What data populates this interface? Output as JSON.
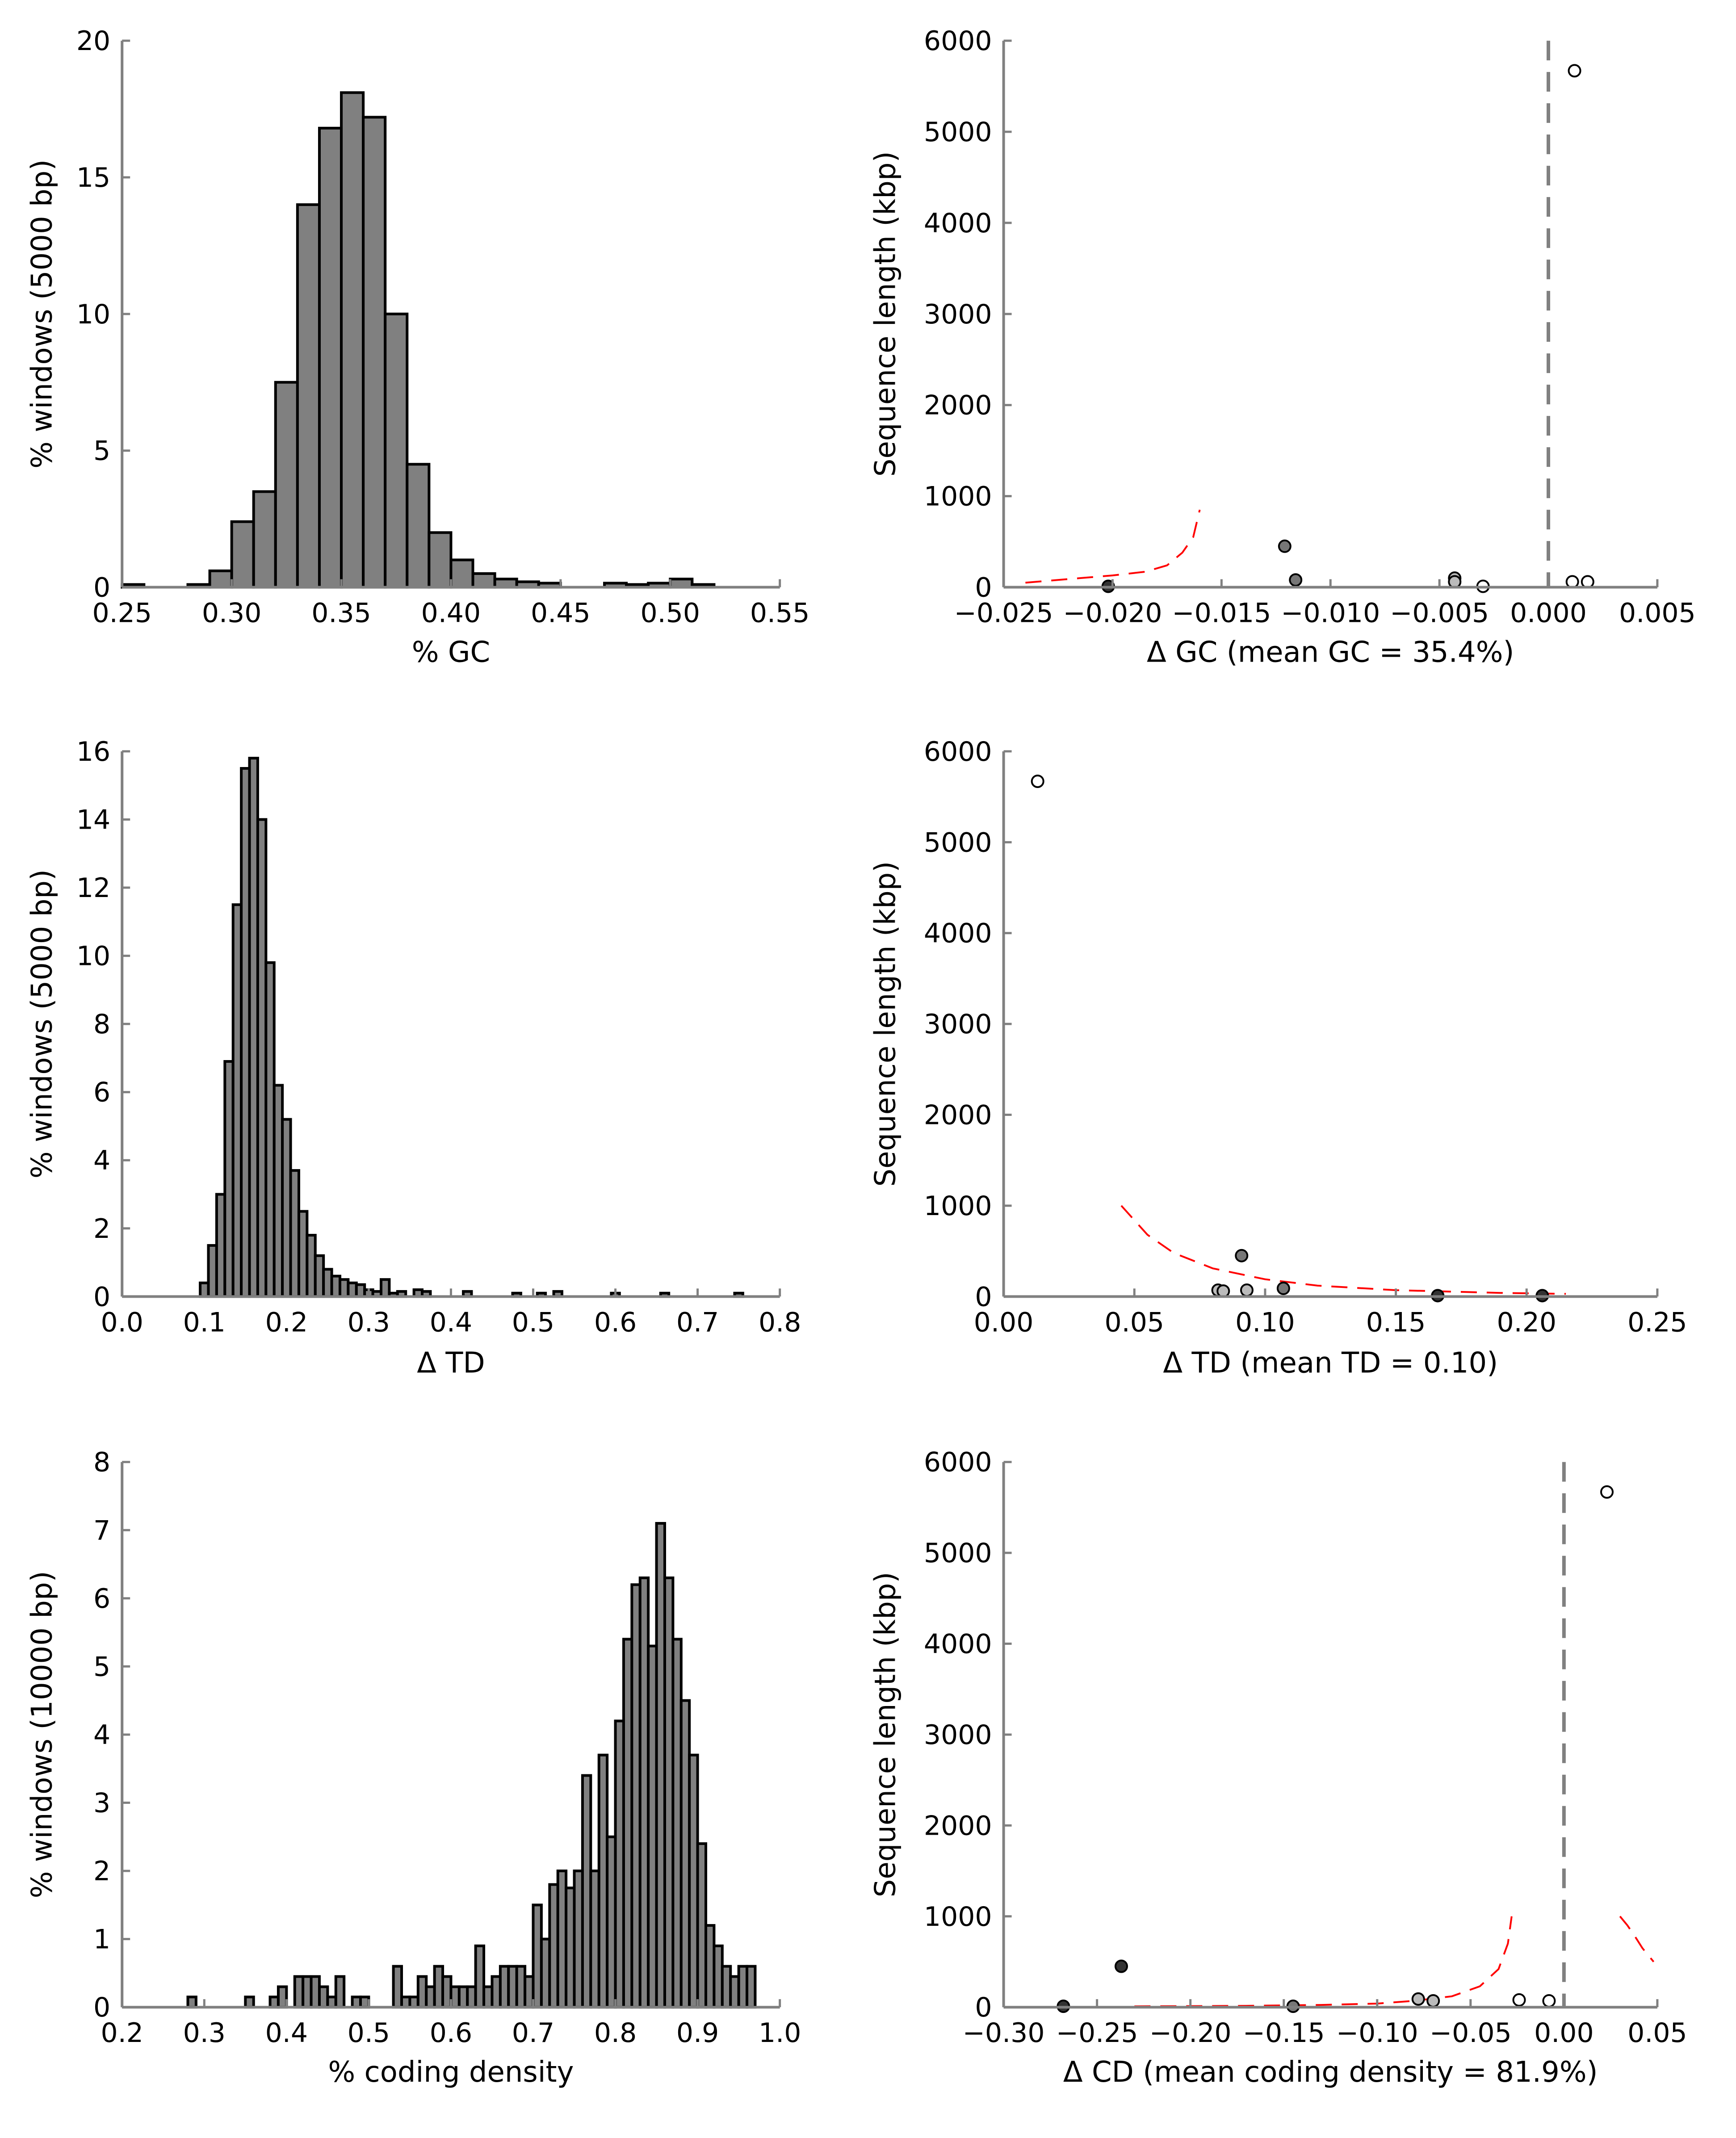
{
  "chart_data": [
    {
      "id": "gc-hist",
      "type": "bar",
      "xlabel": "% GC",
      "ylabel": "% windows (5000 bp)",
      "xlim": [
        0.25,
        0.55
      ],
      "ylim": [
        0,
        20
      ],
      "xticks": [
        "0.25",
        "0.30",
        "0.35",
        "0.40",
        "0.45",
        "0.50",
        "0.55"
      ],
      "xtick_values": [
        0.25,
        0.3,
        0.35,
        0.4,
        0.45,
        0.5,
        0.55
      ],
      "yticks": [
        "0",
        "5",
        "10",
        "15",
        "20"
      ],
      "ytick_values": [
        0,
        5,
        10,
        15,
        20
      ],
      "bar_color": "#808080",
      "bins": [
        [
          0.25,
          0.26,
          0.1
        ],
        [
          0.28,
          0.29,
          0.1
        ],
        [
          0.29,
          0.3,
          0.6
        ],
        [
          0.3,
          0.31,
          2.4
        ],
        [
          0.31,
          0.32,
          3.5
        ],
        [
          0.32,
          0.33,
          7.5
        ],
        [
          0.33,
          0.34,
          14.0
        ],
        [
          0.34,
          0.35,
          16.8
        ],
        [
          0.35,
          0.36,
          18.1
        ],
        [
          0.36,
          0.37,
          17.2
        ],
        [
          0.37,
          0.38,
          10.0
        ],
        [
          0.38,
          0.39,
          4.5
        ],
        [
          0.39,
          0.4,
          2.0
        ],
        [
          0.4,
          0.41,
          1.0
        ],
        [
          0.41,
          0.42,
          0.5
        ],
        [
          0.42,
          0.43,
          0.3
        ],
        [
          0.43,
          0.44,
          0.2
        ],
        [
          0.44,
          0.45,
          0.15
        ],
        [
          0.47,
          0.48,
          0.15
        ],
        [
          0.48,
          0.49,
          0.1
        ],
        [
          0.49,
          0.5,
          0.15
        ],
        [
          0.5,
          0.51,
          0.3
        ],
        [
          0.51,
          0.52,
          0.1
        ]
      ]
    },
    {
      "id": "gc-scatter",
      "type": "scatter",
      "xlabel": "Δ GC (mean GC = 35.4%)",
      "ylabel": "Sequence length (kbp)",
      "xlim": [
        -0.025,
        0.005
      ],
      "ylim": [
        0,
        6000
      ],
      "xticks": [
        "−0.025",
        "−0.020",
        "−0.015",
        "−0.010",
        "−0.005",
        "0.000",
        "0.005"
      ],
      "xtick_values": [
        -0.025,
        -0.02,
        -0.015,
        -0.01,
        -0.005,
        0.0,
        0.005
      ],
      "yticks": [
        "0",
        "1000",
        "2000",
        "3000",
        "4000",
        "5000",
        "6000"
      ],
      "ytick_values": [
        0,
        1000,
        2000,
        3000,
        4000,
        5000,
        6000
      ],
      "vline": 0.0,
      "points": [
        {
          "x": -0.0202,
          "y": 10,
          "color": "#333333"
        },
        {
          "x": -0.0121,
          "y": 450,
          "color": "#777777"
        },
        {
          "x": -0.0116,
          "y": 80,
          "color": "#777777"
        },
        {
          "x": -0.0043,
          "y": 100,
          "color": "#bbbbbb"
        },
        {
          "x": -0.0043,
          "y": 60,
          "color": "#bbbbbb"
        },
        {
          "x": -0.003,
          "y": 10,
          "color": "#ffffff"
        },
        {
          "x": 0.0012,
          "y": 5670,
          "color": "#ffffff"
        },
        {
          "x": 0.0011,
          "y": 60,
          "color": "#ffffff"
        },
        {
          "x": 0.0018,
          "y": 60,
          "color": "#ffffff"
        }
      ],
      "curves": [
        [
          [
            -0.024,
            50
          ],
          [
            -0.022,
            90
          ],
          [
            -0.02,
            130
          ],
          [
            -0.0185,
            170
          ],
          [
            -0.0175,
            240
          ],
          [
            -0.0168,
            380
          ],
          [
            -0.0163,
            550
          ],
          [
            -0.016,
            850
          ]
        ]
      ]
    },
    {
      "id": "td-hist",
      "type": "bar",
      "xlabel": "Δ TD",
      "ylabel": "% windows (5000 bp)",
      "xlim": [
        0.0,
        0.8
      ],
      "ylim": [
        0,
        16
      ],
      "xticks": [
        "0.0",
        "0.1",
        "0.2",
        "0.3",
        "0.4",
        "0.5",
        "0.6",
        "0.7",
        "0.8"
      ],
      "xtick_values": [
        0.0,
        0.1,
        0.2,
        0.3,
        0.4,
        0.5,
        0.6,
        0.7,
        0.8
      ],
      "yticks": [
        "0",
        "2",
        "4",
        "6",
        "8",
        "10",
        "12",
        "14",
        "16"
      ],
      "ytick_values": [
        0,
        2,
        4,
        6,
        8,
        10,
        12,
        14,
        16
      ],
      "bar_color": "#808080",
      "bins": [
        [
          0.095,
          0.105,
          0.4
        ],
        [
          0.105,
          0.115,
          1.5
        ],
        [
          0.115,
          0.125,
          3.0
        ],
        [
          0.125,
          0.135,
          6.9
        ],
        [
          0.135,
          0.145,
          11.5
        ],
        [
          0.145,
          0.155,
          15.5
        ],
        [
          0.155,
          0.165,
          15.8
        ],
        [
          0.165,
          0.175,
          14.0
        ],
        [
          0.175,
          0.185,
          9.8
        ],
        [
          0.185,
          0.195,
          6.2
        ],
        [
          0.195,
          0.205,
          5.2
        ],
        [
          0.205,
          0.215,
          3.7
        ],
        [
          0.215,
          0.225,
          2.5
        ],
        [
          0.225,
          0.235,
          1.8
        ],
        [
          0.235,
          0.245,
          1.2
        ],
        [
          0.245,
          0.255,
          0.8
        ],
        [
          0.255,
          0.265,
          0.6
        ],
        [
          0.265,
          0.275,
          0.5
        ],
        [
          0.275,
          0.285,
          0.4
        ],
        [
          0.285,
          0.295,
          0.35
        ],
        [
          0.295,
          0.305,
          0.2
        ],
        [
          0.305,
          0.315,
          0.15
        ],
        [
          0.315,
          0.325,
          0.5
        ],
        [
          0.325,
          0.335,
          0.1
        ],
        [
          0.335,
          0.345,
          0.15
        ],
        [
          0.355,
          0.365,
          0.2
        ],
        [
          0.365,
          0.375,
          0.15
        ],
        [
          0.415,
          0.425,
          0.15
        ],
        [
          0.475,
          0.485,
          0.1
        ],
        [
          0.505,
          0.515,
          0.1
        ],
        [
          0.525,
          0.535,
          0.15
        ],
        [
          0.595,
          0.605,
          0.1
        ],
        [
          0.655,
          0.665,
          0.1
        ],
        [
          0.745,
          0.755,
          0.1
        ]
      ]
    },
    {
      "id": "td-scatter",
      "type": "scatter",
      "xlabel": "Δ TD (mean TD = 0.10)",
      "ylabel": "Sequence length (kbp)",
      "xlim": [
        0.0,
        0.25
      ],
      "ylim": [
        0,
        6000
      ],
      "xticks": [
        "0.00",
        "0.05",
        "0.10",
        "0.15",
        "0.20",
        "0.25"
      ],
      "xtick_values": [
        0.0,
        0.05,
        0.1,
        0.15,
        0.2,
        0.25
      ],
      "yticks": [
        "0",
        "1000",
        "2000",
        "3000",
        "4000",
        "5000",
        "6000"
      ],
      "ytick_values": [
        0,
        1000,
        2000,
        3000,
        4000,
        5000,
        6000
      ],
      "points": [
        {
          "x": 0.013,
          "y": 5670,
          "color": "#ffffff"
        },
        {
          "x": 0.082,
          "y": 70,
          "color": "#bbbbbb"
        },
        {
          "x": 0.084,
          "y": 60,
          "color": "#bbbbbb"
        },
        {
          "x": 0.091,
          "y": 450,
          "color": "#777777"
        },
        {
          "x": 0.093,
          "y": 70,
          "color": "#bbbbbb"
        },
        {
          "x": 0.107,
          "y": 90,
          "color": "#777777"
        },
        {
          "x": 0.166,
          "y": 10,
          "color": "#333333"
        },
        {
          "x": 0.206,
          "y": 10,
          "color": "#333333"
        }
      ],
      "curves": [
        [
          [
            0.045,
            1000
          ],
          [
            0.055,
            680
          ],
          [
            0.065,
            480
          ],
          [
            0.08,
            310
          ],
          [
            0.1,
            190
          ],
          [
            0.12,
            120
          ],
          [
            0.15,
            70
          ],
          [
            0.19,
            40
          ],
          [
            0.215,
            30
          ]
        ]
      ]
    },
    {
      "id": "cd-hist",
      "type": "bar",
      "xlabel": "% coding density",
      "ylabel": "% windows (10000 bp)",
      "xlim": [
        0.2,
        1.0
      ],
      "ylim": [
        0,
        8
      ],
      "xticks": [
        "0.2",
        "0.3",
        "0.4",
        "0.5",
        "0.6",
        "0.7",
        "0.8",
        "0.9",
        "1.0"
      ],
      "xtick_values": [
        0.2,
        0.3,
        0.4,
        0.5,
        0.6,
        0.7,
        0.8,
        0.9,
        1.0
      ],
      "yticks": [
        "0",
        "1",
        "2",
        "3",
        "4",
        "5",
        "6",
        "7",
        "8"
      ],
      "ytick_values": [
        0,
        1,
        2,
        3,
        4,
        5,
        6,
        7,
        8
      ],
      "bar_color": "#808080",
      "bins": [
        [
          0.28,
          0.29,
          0.15
        ],
        [
          0.35,
          0.36,
          0.15
        ],
        [
          0.38,
          0.39,
          0.15
        ],
        [
          0.39,
          0.4,
          0.3
        ],
        [
          0.41,
          0.42,
          0.45
        ],
        [
          0.42,
          0.43,
          0.45
        ],
        [
          0.43,
          0.44,
          0.45
        ],
        [
          0.44,
          0.45,
          0.3
        ],
        [
          0.45,
          0.46,
          0.15
        ],
        [
          0.46,
          0.47,
          0.45
        ],
        [
          0.48,
          0.49,
          0.15
        ],
        [
          0.49,
          0.5,
          0.15
        ],
        [
          0.53,
          0.54,
          0.6
        ],
        [
          0.54,
          0.55,
          0.15
        ],
        [
          0.55,
          0.56,
          0.15
        ],
        [
          0.56,
          0.57,
          0.45
        ],
        [
          0.57,
          0.58,
          0.3
        ],
        [
          0.58,
          0.59,
          0.6
        ],
        [
          0.59,
          0.6,
          0.45
        ],
        [
          0.6,
          0.61,
          0.3
        ],
        [
          0.61,
          0.62,
          0.3
        ],
        [
          0.62,
          0.63,
          0.3
        ],
        [
          0.63,
          0.64,
          0.9
        ],
        [
          0.64,
          0.65,
          0.3
        ],
        [
          0.65,
          0.66,
          0.45
        ],
        [
          0.66,
          0.67,
          0.6
        ],
        [
          0.67,
          0.68,
          0.6
        ],
        [
          0.68,
          0.69,
          0.6
        ],
        [
          0.69,
          0.7,
          0.45
        ],
        [
          0.7,
          0.71,
          1.5
        ],
        [
          0.71,
          0.72,
          1.0
        ],
        [
          0.72,
          0.73,
          1.8
        ],
        [
          0.73,
          0.74,
          2.0
        ],
        [
          0.74,
          0.75,
          1.75
        ],
        [
          0.75,
          0.76,
          2.0
        ],
        [
          0.76,
          0.77,
          3.4
        ],
        [
          0.77,
          0.78,
          2.0
        ],
        [
          0.78,
          0.79,
          3.7
        ],
        [
          0.79,
          0.8,
          2.5
        ],
        [
          0.8,
          0.81,
          4.2
        ],
        [
          0.81,
          0.82,
          5.4
        ],
        [
          0.82,
          0.83,
          6.2
        ],
        [
          0.83,
          0.84,
          6.3
        ],
        [
          0.84,
          0.85,
          5.3
        ],
        [
          0.85,
          0.86,
          7.1
        ],
        [
          0.86,
          0.87,
          6.3
        ],
        [
          0.87,
          0.88,
          5.4
        ],
        [
          0.88,
          0.89,
          4.5
        ],
        [
          0.89,
          0.9,
          3.7
        ],
        [
          0.9,
          0.91,
          2.4
        ],
        [
          0.91,
          0.92,
          1.2
        ],
        [
          0.92,
          0.93,
          0.9
        ],
        [
          0.93,
          0.94,
          0.6
        ],
        [
          0.94,
          0.95,
          0.45
        ],
        [
          0.95,
          0.96,
          0.6
        ],
        [
          0.96,
          0.97,
          0.6
        ]
      ]
    },
    {
      "id": "cd-scatter",
      "type": "scatter",
      "xlabel": "Δ CD (mean coding density = 81.9%)",
      "ylabel": "Sequence length (kbp)",
      "xlim": [
        -0.3,
        0.05
      ],
      "ylim": [
        0,
        6000
      ],
      "xticks": [
        "−0.30",
        "−0.25",
        "−0.20",
        "−0.15",
        "−0.10",
        "−0.05",
        "0.00",
        "0.05"
      ],
      "xtick_values": [
        -0.3,
        -0.25,
        -0.2,
        -0.15,
        -0.1,
        -0.05,
        0.0,
        0.05
      ],
      "yticks": [
        "0",
        "1000",
        "2000",
        "3000",
        "4000",
        "5000",
        "6000"
      ],
      "ytick_values": [
        0,
        1000,
        2000,
        3000,
        4000,
        5000,
        6000
      ],
      "vline": 0.0,
      "points": [
        {
          "x": -0.268,
          "y": 10,
          "color": "#333333"
        },
        {
          "x": -0.237,
          "y": 450,
          "color": "#333333"
        },
        {
          "x": -0.145,
          "y": 10,
          "color": "#777777"
        },
        {
          "x": -0.078,
          "y": 90,
          "color": "#bbbbbb"
        },
        {
          "x": -0.07,
          "y": 70,
          "color": "#bbbbbb"
        },
        {
          "x": -0.024,
          "y": 80,
          "color": "#ffffff"
        },
        {
          "x": -0.008,
          "y": 70,
          "color": "#ffffff"
        },
        {
          "x": 0.023,
          "y": 5670,
          "color": "#ffffff"
        }
      ],
      "curves": [
        [
          [
            -0.23,
            10
          ],
          [
            -0.2,
            12
          ],
          [
            -0.17,
            15
          ],
          [
            -0.13,
            25
          ],
          [
            -0.1,
            40
          ],
          [
            -0.08,
            70
          ],
          [
            -0.06,
            120
          ],
          [
            -0.045,
            230
          ],
          [
            -0.035,
            420
          ],
          [
            -0.03,
            700
          ],
          [
            -0.028,
            1000
          ]
        ],
        [
          [
            0.03,
            1000
          ],
          [
            0.034,
            900
          ],
          [
            0.038,
            780
          ],
          [
            0.042,
            650
          ],
          [
            0.048,
            500
          ]
        ]
      ]
    }
  ]
}
